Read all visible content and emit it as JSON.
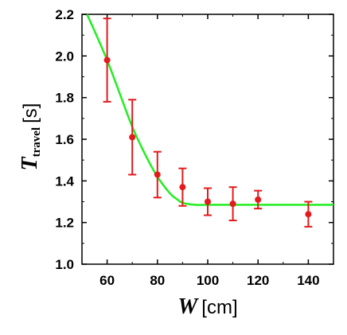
{
  "chart_data": {
    "type": "scatter",
    "title": "",
    "xlabel": {
      "symbol": "W",
      "unit": "[cm]"
    },
    "ylabel": {
      "symbol": "T",
      "subscript": "travel",
      "unit": "[s]"
    },
    "xlim": [
      50,
      150
    ],
    "ylim": [
      1.0,
      2.2
    ],
    "xticks": [
      60,
      80,
      100,
      120,
      140
    ],
    "xtick_labels": [
      "60",
      "80",
      "100",
      "120",
      "140"
    ],
    "yticks": [
      1.0,
      1.2,
      1.4,
      1.6,
      1.8,
      2.0,
      2.2
    ],
    "ytick_labels": [
      "1.0",
      "1.2",
      "1.4",
      "1.6",
      "1.8",
      "2.0",
      "2.2"
    ],
    "grid": false,
    "legend": "none",
    "series": [
      {
        "kind": "points_with_error_bars",
        "color": "#e41a1c",
        "x": [
          60,
          70,
          80,
          90,
          100,
          110,
          120,
          140
        ],
        "y": [
          1.98,
          1.61,
          1.43,
          1.37,
          1.3,
          1.29,
          1.31,
          1.24
        ],
        "err": [
          0.2,
          0.18,
          0.11,
          0.09,
          0.065,
          0.08,
          0.043,
          0.06
        ]
      },
      {
        "kind": "fit_curve",
        "color": "#22ee22",
        "x": [
          52,
          55,
          60,
          65,
          70,
          75,
          80,
          85,
          88,
          90,
          95,
          100,
          110,
          120,
          130,
          140,
          150
        ],
        "y": [
          2.2,
          2.12,
          1.98,
          1.82,
          1.66,
          1.53,
          1.42,
          1.34,
          1.31,
          1.295,
          1.285,
          1.285,
          1.285,
          1.285,
          1.285,
          1.285,
          1.285
        ]
      }
    ]
  }
}
